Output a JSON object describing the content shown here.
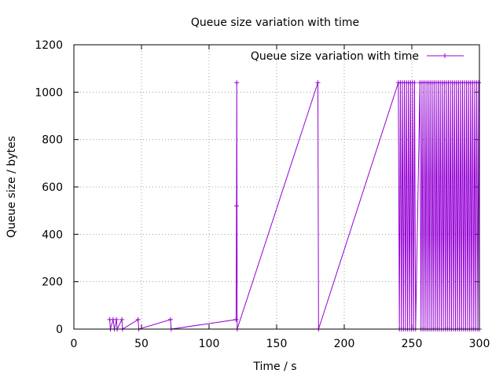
{
  "chart_data": {
    "type": "line",
    "title": "Queue size variation with time",
    "xlabel": "Time / s",
    "ylabel": "Queue size / bytes",
    "xlim": [
      0,
      300
    ],
    "ylim": [
      0,
      1200
    ],
    "xticks": [
      0,
      50,
      100,
      150,
      200,
      250,
      300
    ],
    "yticks": [
      0,
      200,
      400,
      600,
      800,
      1000,
      1200
    ],
    "grid": true,
    "legend_position": "top-right",
    "series_color": "#9400d3",
    "series": [
      {
        "name": "Queue size variation with time",
        "marker": "plus",
        "points": [
          [
            26.5,
            40
          ],
          [
            27,
            0
          ],
          [
            29,
            40
          ],
          [
            30,
            0
          ],
          [
            31.5,
            40
          ],
          [
            32,
            0
          ],
          [
            35.5,
            40
          ],
          [
            36,
            0
          ],
          [
            47.5,
            40
          ],
          [
            48,
            0
          ],
          [
            71.5,
            40
          ],
          [
            72,
            0
          ],
          [
            120,
            40
          ],
          [
            120.3,
            520
          ],
          [
            120.5,
            1040
          ],
          [
            120.8,
            0
          ],
          [
            180.5,
            1040
          ],
          [
            181,
            0
          ],
          [
            240,
            1040
          ],
          [
            240.8,
            0
          ],
          [
            241.5,
            1040
          ],
          [
            242.3,
            0
          ],
          [
            243,
            1040
          ],
          [
            243.8,
            0
          ],
          [
            244.5,
            1040
          ],
          [
            245.3,
            0
          ],
          [
            246,
            1040
          ],
          [
            246.8,
            0
          ],
          [
            247.5,
            1040
          ],
          [
            248.3,
            0
          ],
          [
            249,
            1040
          ],
          [
            249.8,
            0
          ],
          [
            250.5,
            1040
          ],
          [
            251.3,
            0
          ],
          [
            252,
            1040
          ],
          [
            252.8,
            0
          ],
          [
            256,
            1040
          ],
          [
            256.8,
            0
          ],
          [
            257.5,
            1040
          ],
          [
            258.3,
            0
          ],
          [
            259,
            1040
          ],
          [
            259.8,
            0
          ],
          [
            260.5,
            1040
          ],
          [
            261.3,
            0
          ],
          [
            262,
            1040
          ],
          [
            262.8,
            0
          ],
          [
            263.5,
            1040
          ],
          [
            264.3,
            0
          ],
          [
            265,
            1040
          ],
          [
            265.8,
            0
          ],
          [
            266.5,
            1040
          ],
          [
            267.3,
            0
          ],
          [
            268,
            1040
          ],
          [
            268.8,
            0
          ],
          [
            269.5,
            1040
          ],
          [
            270.3,
            0
          ],
          [
            271,
            1040
          ],
          [
            271.8,
            0
          ],
          [
            272.5,
            1040
          ],
          [
            273.3,
            0
          ],
          [
            274,
            1040
          ],
          [
            274.8,
            0
          ],
          [
            275.5,
            1040
          ],
          [
            276.3,
            0
          ],
          [
            277,
            1040
          ],
          [
            277.8,
            0
          ],
          [
            278.5,
            1040
          ],
          [
            279.3,
            0
          ],
          [
            280,
            1040
          ],
          [
            280.8,
            0
          ],
          [
            281.5,
            1040
          ],
          [
            282.3,
            0
          ],
          [
            283,
            1040
          ],
          [
            283.8,
            0
          ],
          [
            284.5,
            1040
          ],
          [
            285.3,
            0
          ],
          [
            286,
            1040
          ],
          [
            286.8,
            0
          ],
          [
            287.5,
            1040
          ],
          [
            288.3,
            0
          ],
          [
            289,
            1040
          ],
          [
            289.8,
            0
          ],
          [
            290.5,
            1040
          ],
          [
            291.3,
            0
          ],
          [
            292,
            1040
          ],
          [
            292.8,
            0
          ],
          [
            293.5,
            1040
          ],
          [
            294.3,
            0
          ],
          [
            295,
            1040
          ],
          [
            295.8,
            0
          ],
          [
            296.5,
            1040
          ],
          [
            297.3,
            0
          ],
          [
            298,
            1040
          ],
          [
            298.8,
            0
          ],
          [
            299.5,
            1040
          ],
          [
            300,
            0
          ]
        ]
      }
    ]
  }
}
